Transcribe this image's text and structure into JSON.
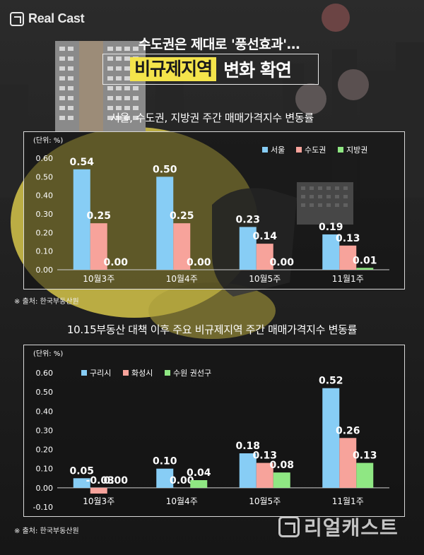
{
  "brand": {
    "logo_text": "Real Cast",
    "logo_icon": "realcast-logo-icon",
    "watermark_text": "리얼캐스트"
  },
  "headline": {
    "subtitle": "수도권은 제대로 '풍선효과'…",
    "title_highlight": "비규제지역",
    "title_rest": "변화 확연"
  },
  "colors": {
    "series1": "#87cdf5",
    "series2": "#f7a39b",
    "series3": "#8fe783",
    "highlight": "#f4e44b"
  },
  "chart_data": [
    {
      "type": "bar",
      "title": "서울, 수도권, 지방권 주간 매매가격지수 변동률",
      "unit_label": "(단위: %)",
      "categories": [
        "10월3주",
        "10월4주",
        "10월5주",
        "11월1주"
      ],
      "series": [
        {
          "name": "서울",
          "values": [
            0.54,
            0.5,
            0.23,
            0.19
          ],
          "labels": [
            "0.54",
            "0.50",
            "0.23",
            "0.19"
          ]
        },
        {
          "name": "수도권",
          "values": [
            0.25,
            0.25,
            0.14,
            0.13
          ],
          "labels": [
            "0.25",
            "0.25",
            "0.14",
            "0.13"
          ]
        },
        {
          "name": "지방권",
          "values": [
            0.0,
            0.0,
            0.0,
            0.01
          ],
          "labels": [
            "0.00",
            "0.00",
            "0.00",
            "0.01"
          ]
        }
      ],
      "yticks": [
        "0.00",
        "0.10",
        "0.20",
        "0.30",
        "0.40",
        "0.50",
        "0.60"
      ],
      "ylim": [
        0,
        0.6
      ],
      "legend_position": "top-right",
      "grid": false,
      "source": "※ 출처: 한국부동산원"
    },
    {
      "type": "bar",
      "title": "10.15부동산 대책 이후 주요 비규제지역 주간 매매가격지수  변동률",
      "unit_label": "(단위: %)",
      "categories": [
        "10월3주",
        "10월4주",
        "10월5주",
        "11월1주"
      ],
      "series": [
        {
          "name": "구리시",
          "values": [
            0.05,
            0.1,
            0.18,
            0.52
          ],
          "labels": [
            "0.05",
            "0.10",
            "0.18",
            "0.52"
          ]
        },
        {
          "name": "화성시",
          "values": [
            -0.03,
            0.0,
            0.13,
            0.26
          ],
          "labels": [
            "-0.03",
            "0.00",
            "0.13",
            "0.26"
          ]
        },
        {
          "name": "수원 권선구",
          "values": [
            0.0,
            0.04,
            0.08,
            0.13
          ],
          "labels": [
            "0.00",
            "0.04",
            "0.08",
            "0.13"
          ]
        }
      ],
      "yticks": [
        "-0.10",
        "0.00",
        "0.10",
        "0.20",
        "0.30",
        "0.40",
        "0.50",
        "0.60"
      ],
      "ylim": [
        -0.1,
        0.6
      ],
      "legend_position": "top-left",
      "grid": false,
      "source": "※ 출처: 한국부동산원"
    }
  ]
}
